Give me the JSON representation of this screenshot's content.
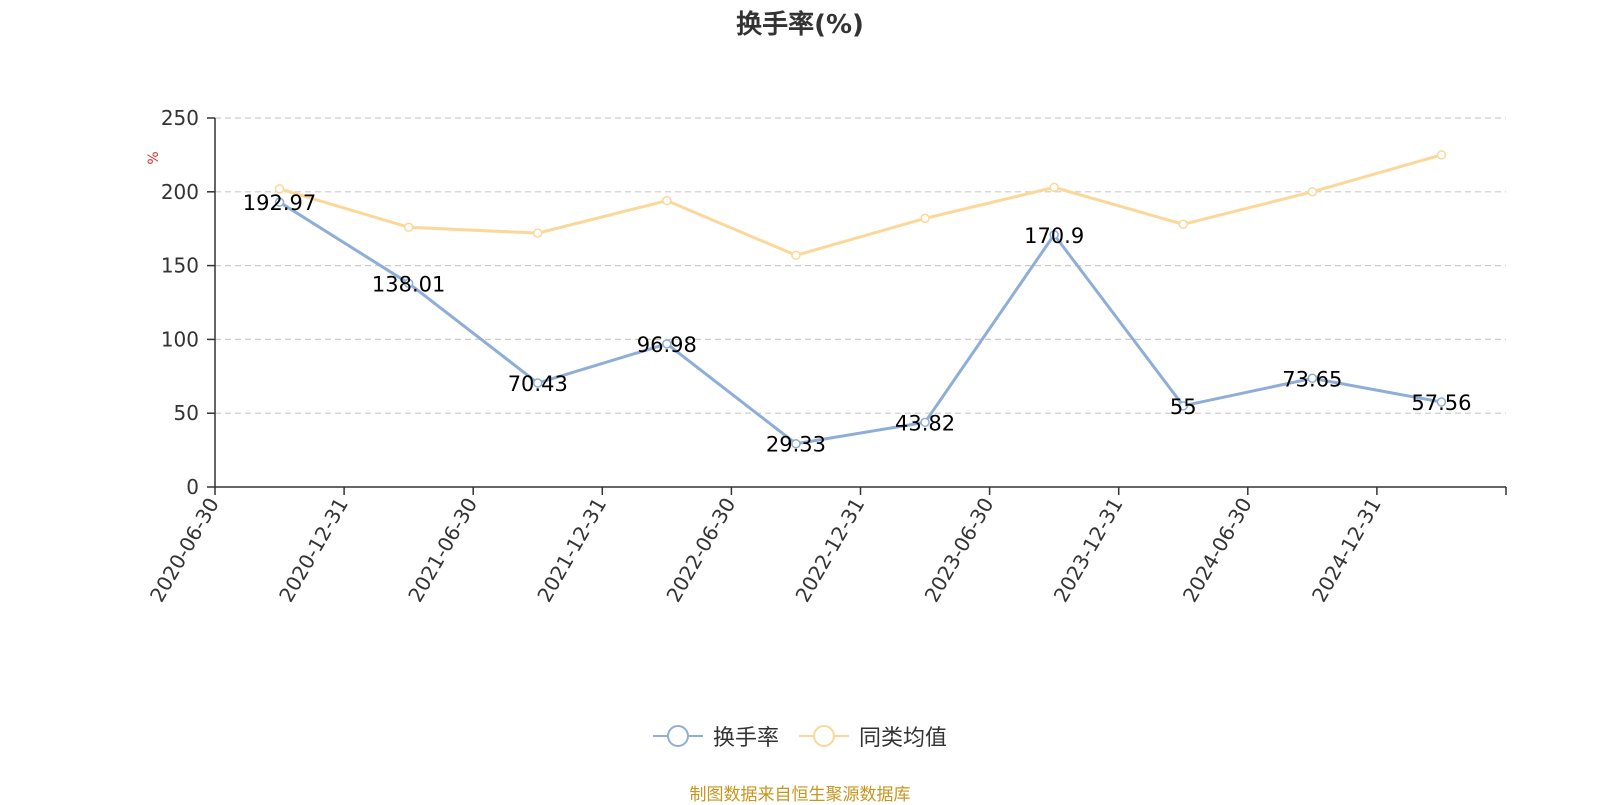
{
  "title": "换手率(%)",
  "source_note": "制图数据来自恒生聚源数据库",
  "colors": {
    "series_turnover": "#8eaed8",
    "series_peer_avg": "#fbd899",
    "grid": "#cccccc",
    "axis": "#333333",
    "unit": "#e03030",
    "source": "#c8961e"
  },
  "chart_data": {
    "type": "line",
    "title": "换手率(%)",
    "ylabel": "%",
    "ylim": [
      0,
      250
    ],
    "yticks": [
      0,
      50,
      100,
      150,
      200,
      250
    ],
    "grid": true,
    "legend_position": "bottom-center",
    "categories": [
      "2020-06-30",
      "2020-12-31",
      "2021-06-30",
      "2021-12-31",
      "2022-06-30",
      "2022-12-31",
      "2023-06-30",
      "2023-12-31",
      "2024-06-30",
      "2024-12-31"
    ],
    "series": [
      {
        "name": "换手率",
        "values": [
          192.97,
          138.01,
          70.43,
          96.98,
          29.33,
          43.82,
          170.9,
          55,
          73.65,
          57.56
        ],
        "labels": [
          "192.97",
          "138.01",
          "70.43",
          "96.98",
          "29.33",
          "43.82",
          "170.9",
          "55",
          "73.65",
          "57.56"
        ],
        "show_labels": true
      },
      {
        "name": "同类均值",
        "values": [
          202,
          176,
          172,
          194,
          157,
          182,
          203,
          178,
          200,
          225
        ],
        "show_labels": false
      }
    ]
  }
}
